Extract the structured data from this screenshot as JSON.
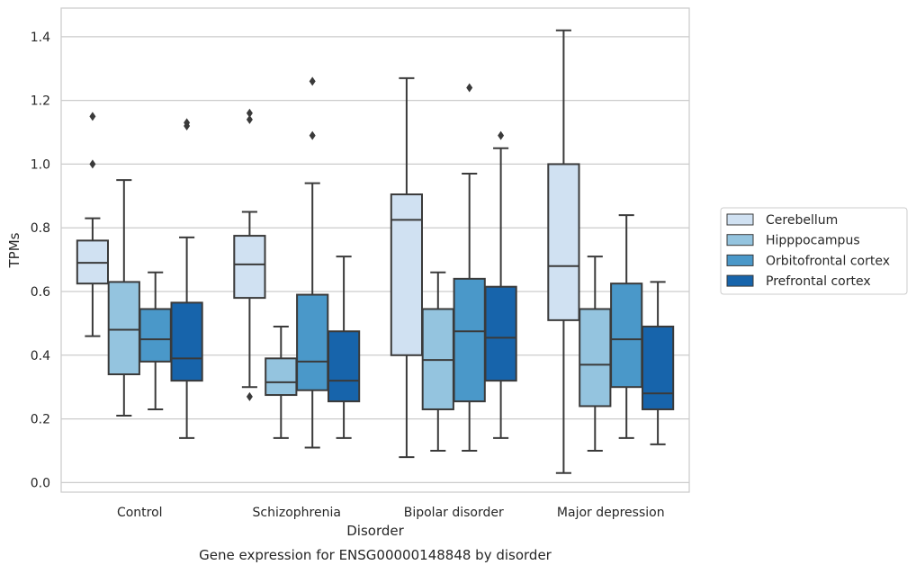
{
  "chart_data": {
    "type": "box",
    "title": "",
    "caption": "Gene expression for ENSG00000148848 by disorder",
    "xlabel": "Disorder",
    "ylabel": "TPMs",
    "ylim": [
      -0.03,
      1.49
    ],
    "yticks": [
      0.0,
      0.2,
      0.4,
      0.6,
      0.8,
      1.0,
      1.2,
      1.4
    ],
    "ytick_labels": [
      "0.0",
      "0.2",
      "0.4",
      "0.6",
      "0.8",
      "1.0",
      "1.2",
      "1.4"
    ],
    "grid": "horizontal",
    "legend_position": "right",
    "categories": [
      "Control",
      "Schizophrenia",
      "Bipolar disorder",
      "Major depression"
    ],
    "series": [
      {
        "name": "Cerebellum",
        "color": "#d0e1f2",
        "boxes": [
          {
            "whisker_low": 0.46,
            "q1": 0.625,
            "median": 0.69,
            "q3": 0.76,
            "whisker_high": 0.83,
            "outliers": [
              1.0,
              1.15
            ]
          },
          {
            "whisker_low": 0.3,
            "q1": 0.58,
            "median": 0.685,
            "q3": 0.775,
            "whisker_high": 0.85,
            "outliers": [
              0.27,
              1.14,
              1.16
            ]
          },
          {
            "whisker_low": 0.08,
            "q1": 0.4,
            "median": 0.825,
            "q3": 0.905,
            "whisker_high": 1.27,
            "outliers": []
          },
          {
            "whisker_low": 0.03,
            "q1": 0.51,
            "median": 0.68,
            "q3": 1.0,
            "whisker_high": 1.42,
            "outliers": []
          }
        ]
      },
      {
        "name": "Hipppocampus",
        "color": "#94c4df",
        "boxes": [
          {
            "whisker_low": 0.21,
            "q1": 0.34,
            "median": 0.48,
            "q3": 0.63,
            "whisker_high": 0.95,
            "outliers": []
          },
          {
            "whisker_low": 0.14,
            "q1": 0.275,
            "median": 0.315,
            "q3": 0.39,
            "whisker_high": 0.49,
            "outliers": []
          },
          {
            "whisker_low": 0.1,
            "q1": 0.23,
            "median": 0.385,
            "q3": 0.545,
            "whisker_high": 0.66,
            "outliers": []
          },
          {
            "whisker_low": 0.1,
            "q1": 0.24,
            "median": 0.37,
            "q3": 0.545,
            "whisker_high": 0.71,
            "outliers": []
          }
        ]
      },
      {
        "name": "Orbitofrontal cortex",
        "color": "#4a98c9",
        "boxes": [
          {
            "whisker_low": 0.23,
            "q1": 0.38,
            "median": 0.45,
            "q3": 0.545,
            "whisker_high": 0.66,
            "outliers": []
          },
          {
            "whisker_low": 0.11,
            "q1": 0.29,
            "median": 0.38,
            "q3": 0.59,
            "whisker_high": 0.94,
            "outliers": [
              1.09,
              1.26
            ]
          },
          {
            "whisker_low": 0.1,
            "q1": 0.255,
            "median": 0.475,
            "q3": 0.64,
            "whisker_high": 0.97,
            "outliers": [
              1.24
            ]
          },
          {
            "whisker_low": 0.14,
            "q1": 0.3,
            "median": 0.45,
            "q3": 0.625,
            "whisker_high": 0.84,
            "outliers": []
          }
        ]
      },
      {
        "name": "Prefrontal cortex",
        "color": "#1764ab",
        "boxes": [
          {
            "whisker_low": 0.14,
            "q1": 0.32,
            "median": 0.39,
            "q3": 0.565,
            "whisker_high": 0.77,
            "outliers": [
              1.12,
              1.13
            ]
          },
          {
            "whisker_low": 0.14,
            "q1": 0.255,
            "median": 0.32,
            "q3": 0.475,
            "whisker_high": 0.71,
            "outliers": []
          },
          {
            "whisker_low": 0.14,
            "q1": 0.32,
            "median": 0.455,
            "q3": 0.615,
            "whisker_high": 1.05,
            "outliers": [
              1.09
            ]
          },
          {
            "whisker_low": 0.12,
            "q1": 0.23,
            "median": 0.28,
            "q3": 0.49,
            "whisker_high": 0.63,
            "outliers": []
          }
        ]
      }
    ]
  }
}
